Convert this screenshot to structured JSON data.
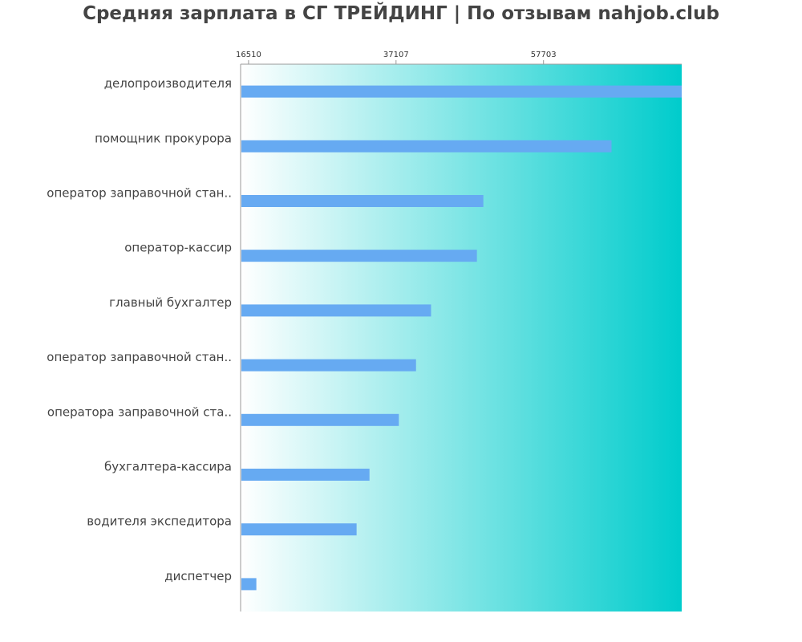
{
  "chart_data": {
    "type": "bar",
    "orientation": "horizontal",
    "title": "Средняя зарплата в СГ ТРЕЙДИНГ | По отзывам nahjob.club",
    "categories": [
      "делопроизводителя",
      "помощник прокурора",
      "оператор заправочной стан..",
      "оператор-кассир",
      "главный бухгалтер",
      "оператор заправочной стан..",
      "оператора заправочной ста..",
      "бухгалтера-кассира",
      "водителя экспедитора",
      "диспетчер"
    ],
    "values": [
      77000,
      67200,
      49300,
      48400,
      42000,
      39900,
      37500,
      33400,
      31600,
      17600
    ],
    "xlim": [
      15400,
      77000
    ],
    "ticks": [
      16510,
      37107,
      57703
    ],
    "tick_labels": [
      "16510",
      "37107",
      "57703"
    ],
    "grid": false,
    "colors": {
      "bar": "#66aaf2",
      "gradient_start": "#ffffff",
      "gradient_end": "#00cccc",
      "axis": "#999999",
      "title": "#444444"
    }
  }
}
